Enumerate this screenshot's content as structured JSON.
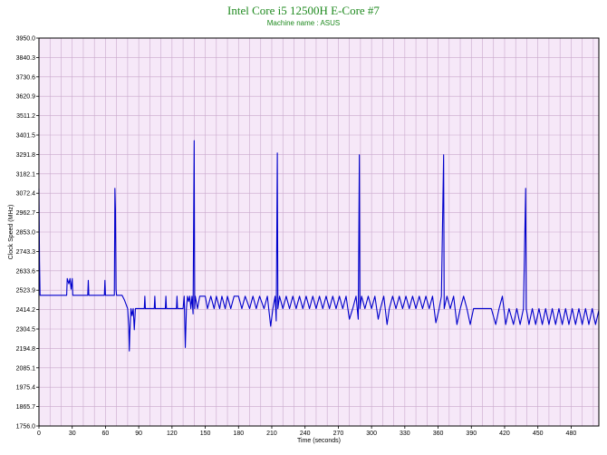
{
  "colors": {
    "title": "#1f8a1f",
    "plot_background": "#f6e8f8",
    "grid": "#c9a9cc",
    "series": "#0000cc",
    "axis": "#000000"
  },
  "chart_data": {
    "type": "line",
    "title": "Intel Core i5 12500H E-Core #7",
    "subtitle": "Machine name : ASUS",
    "xlabel": "Time (seconds)",
    "ylabel": "Clock Speed (MHz)",
    "xlim": [
      0,
      505
    ],
    "ylim": [
      1756.0,
      3950.0
    ],
    "x_ticks": [
      "0",
      "30",
      "60",
      "90",
      "120",
      "150",
      "180",
      "210",
      "240",
      "270",
      "300",
      "330",
      "360",
      "390",
      "420",
      "450",
      "480"
    ],
    "y_ticks": [
      "3950.0",
      "3840.3",
      "3730.6",
      "3620.9",
      "3511.2",
      "3401.5",
      "3291.8",
      "3182.1",
      "3072.4",
      "2962.7",
      "2853.0",
      "2743.3",
      "2633.6",
      "2523.9",
      "2414.2",
      "2304.5",
      "2194.8",
      "2085.1",
      "1975.4",
      "1865.7",
      "1756.0"
    ],
    "grid": true,
    "legend": "none",
    "series": [
      {
        "points": [
          [
            0,
            3100
          ],
          [
            0.5,
            2690
          ],
          [
            1,
            2495
          ],
          [
            25,
            2495
          ],
          [
            25.5,
            2590
          ],
          [
            27,
            2560
          ],
          [
            28,
            2590
          ],
          [
            29,
            2530
          ],
          [
            30,
            2590
          ],
          [
            30.5,
            2495
          ],
          [
            44,
            2495
          ],
          [
            44.5,
            2580
          ],
          [
            45,
            2495
          ],
          [
            59,
            2495
          ],
          [
            59.5,
            2580
          ],
          [
            60,
            2495
          ],
          [
            68,
            2495
          ],
          [
            68.5,
            3100
          ],
          [
            69,
            2980
          ],
          [
            69.5,
            2530
          ],
          [
            70,
            2495
          ],
          [
            75,
            2495
          ],
          [
            77,
            2470
          ],
          [
            80,
            2420
          ],
          [
            81,
            2320
          ],
          [
            81.5,
            2180
          ],
          [
            82,
            2290
          ],
          [
            83,
            2420
          ],
          [
            84,
            2380
          ],
          [
            85,
            2420
          ],
          [
            86,
            2300
          ],
          [
            87,
            2420
          ],
          [
            95,
            2420
          ],
          [
            95.5,
            2490
          ],
          [
            96,
            2420
          ],
          [
            104,
            2420
          ],
          [
            104.5,
            2490
          ],
          [
            105,
            2420
          ],
          [
            114,
            2420
          ],
          [
            114.5,
            2490
          ],
          [
            115,
            2420
          ],
          [
            124,
            2420
          ],
          [
            124.5,
            2490
          ],
          [
            125,
            2420
          ],
          [
            130,
            2420
          ],
          [
            131,
            2490
          ],
          [
            132,
            2200
          ],
          [
            133,
            2420
          ],
          [
            134,
            2490
          ],
          [
            135,
            2460
          ],
          [
            136,
            2490
          ],
          [
            137,
            2420
          ],
          [
            138,
            2490
          ],
          [
            139,
            2390
          ],
          [
            140,
            3370
          ],
          [
            140.5,
            2420
          ],
          [
            141,
            2490
          ],
          [
            143,
            2420
          ],
          [
            145,
            2490
          ],
          [
            150,
            2490
          ],
          [
            152,
            2420
          ],
          [
            155,
            2490
          ],
          [
            158,
            2420
          ],
          [
            160,
            2490
          ],
          [
            163,
            2420
          ],
          [
            165,
            2490
          ],
          [
            168,
            2420
          ],
          [
            170,
            2490
          ],
          [
            173,
            2420
          ],
          [
            176,
            2490
          ],
          [
            180,
            2490
          ],
          [
            183,
            2420
          ],
          [
            186,
            2490
          ],
          [
            190,
            2420
          ],
          [
            193,
            2490
          ],
          [
            196,
            2420
          ],
          [
            199,
            2490
          ],
          [
            203,
            2420
          ],
          [
            206,
            2490
          ],
          [
            209,
            2320
          ],
          [
            211,
            2420
          ],
          [
            213,
            2490
          ],
          [
            214,
            2350
          ],
          [
            215,
            3300
          ],
          [
            215.5,
            2420
          ],
          [
            217,
            2490
          ],
          [
            220,
            2420
          ],
          [
            223,
            2490
          ],
          [
            226,
            2420
          ],
          [
            229,
            2490
          ],
          [
            232,
            2420
          ],
          [
            235,
            2490
          ],
          [
            238,
            2420
          ],
          [
            241,
            2490
          ],
          [
            244,
            2420
          ],
          [
            247,
            2490
          ],
          [
            250,
            2420
          ],
          [
            253,
            2490
          ],
          [
            256,
            2420
          ],
          [
            259,
            2490
          ],
          [
            262,
            2420
          ],
          [
            265,
            2490
          ],
          [
            268,
            2420
          ],
          [
            271,
            2490
          ],
          [
            274,
            2420
          ],
          [
            277,
            2490
          ],
          [
            280,
            2360
          ],
          [
            283,
            2420
          ],
          [
            286,
            2490
          ],
          [
            288,
            2360
          ],
          [
            289,
            3290
          ],
          [
            289.5,
            2420
          ],
          [
            291,
            2490
          ],
          [
            294,
            2420
          ],
          [
            297,
            2490
          ],
          [
            300,
            2420
          ],
          [
            303,
            2490
          ],
          [
            306,
            2360
          ],
          [
            308,
            2420
          ],
          [
            311,
            2490
          ],
          [
            314,
            2330
          ],
          [
            316,
            2420
          ],
          [
            319,
            2490
          ],
          [
            322,
            2420
          ],
          [
            325,
            2490
          ],
          [
            328,
            2420
          ],
          [
            331,
            2490
          ],
          [
            334,
            2420
          ],
          [
            337,
            2490
          ],
          [
            340,
            2420
          ],
          [
            343,
            2490
          ],
          [
            346,
            2420
          ],
          [
            349,
            2490
          ],
          [
            352,
            2420
          ],
          [
            355,
            2490
          ],
          [
            358,
            2340
          ],
          [
            361,
            2420
          ],
          [
            363,
            2490
          ],
          [
            365,
            3290
          ],
          [
            365.5,
            2420
          ],
          [
            368,
            2490
          ],
          [
            371,
            2420
          ],
          [
            374,
            2490
          ],
          [
            377,
            2330
          ],
          [
            380,
            2420
          ],
          [
            383,
            2490
          ],
          [
            386,
            2420
          ],
          [
            389,
            2330
          ],
          [
            392,
            2420
          ],
          [
            396,
            2420
          ],
          [
            400,
            2420
          ],
          [
            404,
            2420
          ],
          [
            408,
            2420
          ],
          [
            412,
            2330
          ],
          [
            415,
            2420
          ],
          [
            418,
            2490
          ],
          [
            421,
            2330
          ],
          [
            424,
            2420
          ],
          [
            428,
            2330
          ],
          [
            431,
            2420
          ],
          [
            434,
            2330
          ],
          [
            437,
            2420
          ],
          [
            439,
            3100
          ],
          [
            439.5,
            2420
          ],
          [
            442,
            2330
          ],
          [
            445,
            2420
          ],
          [
            448,
            2330
          ],
          [
            451,
            2420
          ],
          [
            454,
            2330
          ],
          [
            457,
            2420
          ],
          [
            460,
            2330
          ],
          [
            463,
            2420
          ],
          [
            466,
            2330
          ],
          [
            469,
            2420
          ],
          [
            472,
            2330
          ],
          [
            475,
            2420
          ],
          [
            478,
            2330
          ],
          [
            481,
            2420
          ],
          [
            484,
            2330
          ],
          [
            487,
            2420
          ],
          [
            490,
            2330
          ],
          [
            493,
            2420
          ],
          [
            496,
            2330
          ],
          [
            499,
            2420
          ],
          [
            502,
            2330
          ],
          [
            505,
            2410
          ]
        ]
      }
    ]
  }
}
